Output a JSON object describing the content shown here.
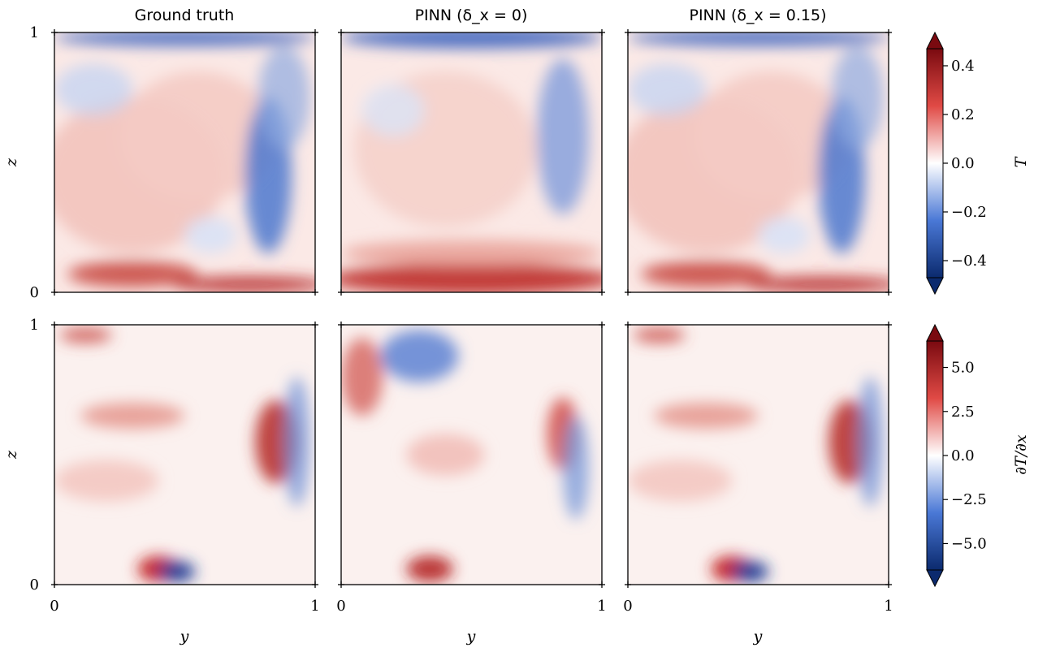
{
  "chart_data": {
    "type": "heatmap",
    "column_titles": [
      "Ground truth",
      "PINN (δ_x = 0)",
      "PINN (δ_x = 0.15)"
    ],
    "x_axis": {
      "label": "y",
      "ticks": [
        "0",
        "1"
      ],
      "range": [
        0,
        1
      ]
    },
    "y_axis": {
      "label": "z",
      "ticks": [
        "0",
        "1"
      ],
      "range": [
        0,
        1
      ]
    },
    "rows": [
      {
        "field": "T",
        "colorbar": {
          "label": "T",
          "range": [
            -0.47,
            0.47
          ],
          "extend": "both",
          "ticks": [
            0.4,
            0.2,
            0.0,
            -0.2,
            -0.4
          ],
          "tick_labels": [
            "0.4",
            "0.2",
            "0.0",
            "−0.2",
            "−0.4"
          ]
        }
      },
      {
        "field": "∂T/∂x",
        "colorbar": {
          "label": "∂T/∂x",
          "range": [
            -6.5,
            6.5
          ],
          "extend": "both",
          "ticks": [
            5.0,
            2.5,
            0.0,
            -2.5,
            -5.0
          ],
          "tick_labels": [
            "5.0",
            "2.5",
            "0.0",
            "−2.5",
            "−5.0"
          ]
        }
      }
    ],
    "colormap": {
      "name": "seismic-like diverging",
      "low": "#0b2a6e",
      "mid": "#ffffff",
      "high": "#7a0a10"
    }
  }
}
